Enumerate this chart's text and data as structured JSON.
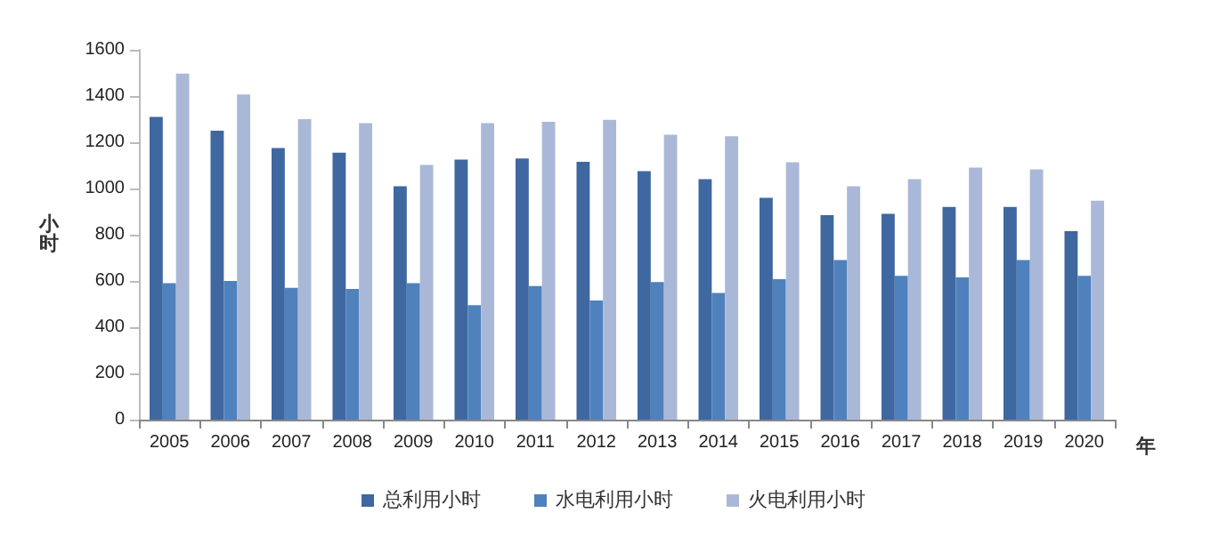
{
  "chart_data": {
    "type": "bar",
    "ylabel": "小时",
    "xlabel": "年",
    "categories": [
      "2005",
      "2006",
      "2007",
      "2008",
      "2009",
      "2010",
      "2011",
      "2012",
      "2013",
      "2014",
      "2015",
      "2016",
      "2017",
      "2018",
      "2019",
      "2020"
    ],
    "series": [
      {
        "name": "总利用小时",
        "color": "#3f67a0",
        "values": [
          1310,
          1250,
          1175,
          1155,
          1010,
          1125,
          1130,
          1115,
          1075,
          1040,
          960,
          885,
          890,
          920,
          920,
          815
        ]
      },
      {
        "name": "水电利用小时",
        "color": "#4f81bd",
        "values": [
          590,
          600,
          570,
          565,
          590,
          495,
          578,
          515,
          595,
          548,
          608,
          690,
          622,
          615,
          690,
          622
        ]
      },
      {
        "name": "火电利用小时",
        "color": "#aab8d8",
        "values": [
          1497,
          1407,
          1300,
          1283,
          1102,
          1283,
          1288,
          1297,
          1233,
          1226,
          1113,
          1010,
          1040,
          1090,
          1083,
          947
        ]
      }
    ],
    "ylim": [
      0,
      1600
    ],
    "yticks": [
      0,
      200,
      400,
      600,
      800,
      1000,
      1200,
      1400,
      1600
    ],
    "grid": false,
    "legend": "bottom"
  }
}
